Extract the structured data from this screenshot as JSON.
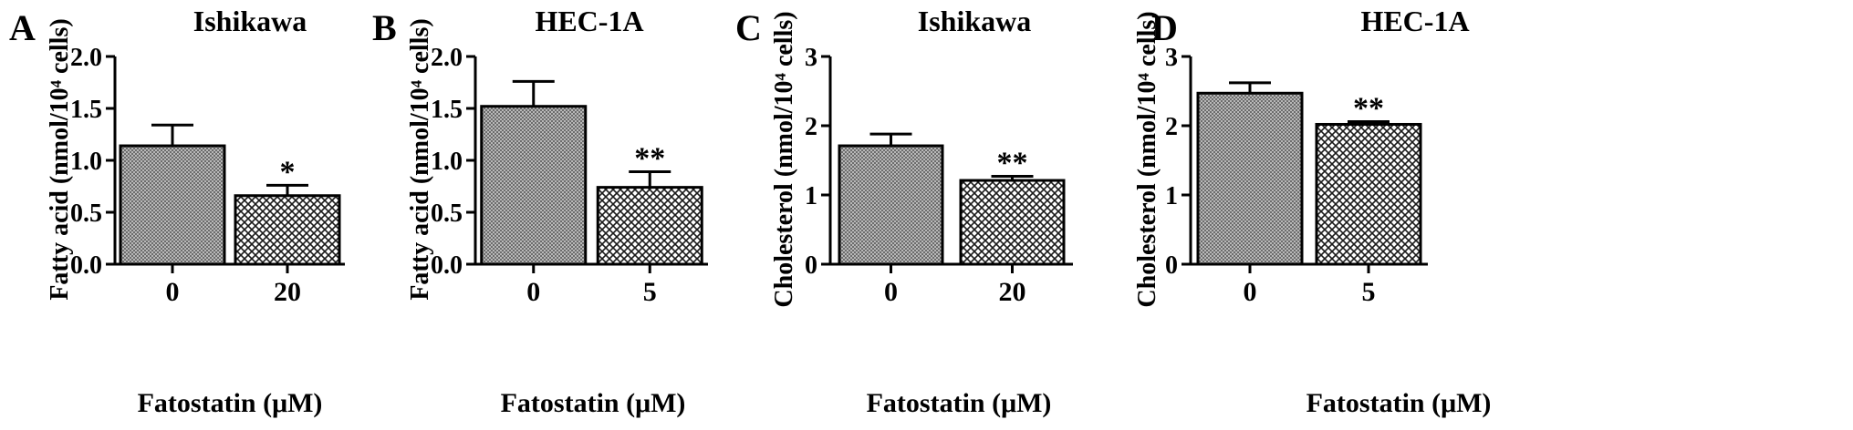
{
  "figure": {
    "panels": [
      {
        "letter": "A",
        "title": "Ishikawa"
      },
      {
        "letter": "B",
        "title": "HEC-1A"
      },
      {
        "letter": "C",
        "title": "Ishikawa"
      },
      {
        "letter": "D",
        "title": "HEC-1A"
      }
    ]
  },
  "chart_data": [
    {
      "type": "bar",
      "title": "Ishikawa",
      "panel": "A",
      "xlabel": "Fatostatin (μM)",
      "ylabel": "Fatty acid (nmol/10⁴ cells)",
      "categories": [
        "0",
        "20"
      ],
      "values": [
        1.14,
        0.66
      ],
      "errors": [
        0.2,
        0.1
      ],
      "significance": [
        "",
        "*"
      ],
      "ylim": [
        0,
        2.0
      ],
      "yticks": [
        0.0,
        0.5,
        1.0,
        1.5,
        2.0
      ],
      "ytick_labels": [
        "0.0",
        "0.5",
        "1.0",
        "1.5",
        "2.0"
      ],
      "grid": false
    },
    {
      "type": "bar",
      "title": "HEC-1A",
      "panel": "B",
      "xlabel": "Fatostatin (μM)",
      "ylabel": "Fatty acid (nmol/10⁴ cells)",
      "categories": [
        "0",
        "5"
      ],
      "values": [
        1.52,
        0.74
      ],
      "errors": [
        0.24,
        0.15
      ],
      "significance": [
        "",
        "**"
      ],
      "ylim": [
        0,
        2.0
      ],
      "yticks": [
        0.0,
        0.5,
        1.0,
        1.5,
        2.0
      ],
      "ytick_labels": [
        "0.0",
        "0.5",
        "1.0",
        "1.5",
        "2.0"
      ],
      "grid": false
    },
    {
      "type": "bar",
      "title": "Ishikawa",
      "panel": "C",
      "xlabel": "Fatostatin (μM)",
      "ylabel": "Cholesterol (nmol/10⁴ cells)",
      "categories": [
        "0",
        "20"
      ],
      "values": [
        1.71,
        1.21
      ],
      "errors": [
        0.17,
        0.06
      ],
      "significance": [
        "",
        "**"
      ],
      "ylim": [
        0,
        3
      ],
      "yticks": [
        0,
        1,
        2,
        3
      ],
      "ytick_labels": [
        "0",
        "1",
        "2",
        "3"
      ],
      "grid": false
    },
    {
      "type": "bar",
      "title": "HEC-1A",
      "panel": "D",
      "xlabel": "Fatostatin (μM)",
      "ylabel": "Cholesterol (nmol/10⁴ cells)",
      "categories": [
        "0",
        "5"
      ],
      "values": [
        2.47,
        2.02
      ],
      "errors": [
        0.15,
        0.04
      ],
      "significance": [
        "",
        "**"
      ],
      "ylim": [
        0,
        3
      ],
      "yticks": [
        0,
        1,
        2,
        3
      ],
      "ytick_labels": [
        "0",
        "1",
        "2",
        "3"
      ],
      "grid": false
    }
  ]
}
